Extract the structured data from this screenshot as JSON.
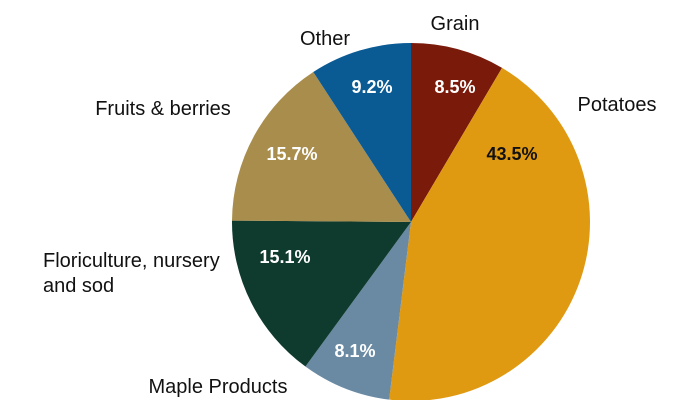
{
  "chart_data": {
    "type": "pie",
    "categories": [
      "Grain",
      "Potatoes",
      "Maple Products",
      "Floriculture, nursery and sod",
      "Fruits & berries",
      "Other"
    ],
    "values": [
      8.5,
      43.5,
      8.1,
      15.1,
      15.7,
      9.2
    ],
    "value_labels": [
      "8.5%",
      "43.5%",
      "8.1%",
      "15.1%",
      "15.7%",
      "9.2%"
    ],
    "colors": [
      "#7a1a0a",
      "#e09a12",
      "#6a8aa4",
      "#0f3a2e",
      "#a98d4c",
      "#0a5a94"
    ]
  }
}
